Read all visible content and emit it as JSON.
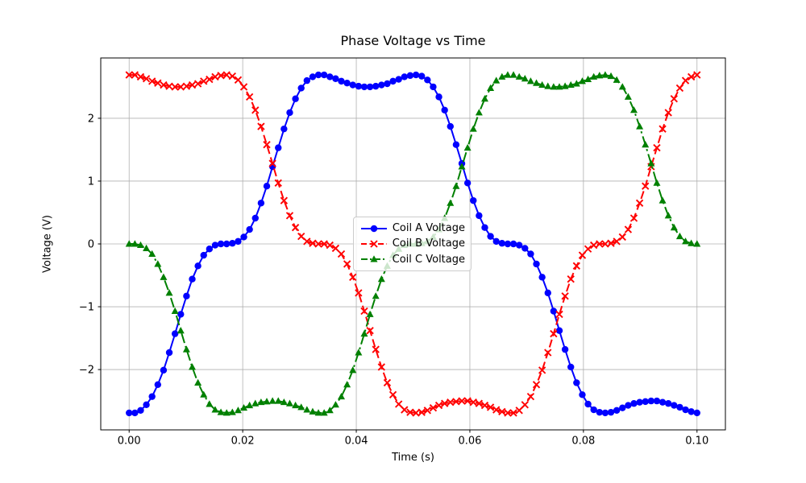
{
  "chart_data": {
    "type": "line",
    "title": "Phase Voltage vs Time",
    "xlabel": "Time (s)",
    "ylabel": "Voltage (V)",
    "xlim": [
      -0.005,
      0.105
    ],
    "ylim": [
      -2.96,
      2.96
    ],
    "x_ticks": [
      0,
      0.02,
      0.04,
      0.06,
      0.08,
      0.1
    ],
    "x_tick_labels": [
      "0.00",
      "0.02",
      "0.04",
      "0.06",
      "0.08",
      "0.10"
    ],
    "y_ticks": [
      -2,
      -1,
      0,
      1,
      2
    ],
    "y_tick_labels": [
      "−2",
      "−1",
      "0",
      "1",
      "2"
    ],
    "grid": true,
    "legend_position": "center",
    "colors": {
      "background": "#ffffff",
      "grid": "#b0b0b0",
      "axes": "#000000",
      "text": "#000000",
      "legend_border": "#cccccc"
    },
    "t": [
      0,
      0.00101,
      0.00202,
      0.00303,
      0.00404,
      0.00505,
      0.00606,
      0.00707,
      0.00808,
      0.00909,
      0.0101,
      0.01111,
      0.01212,
      0.01313,
      0.01414,
      0.01515,
      0.01616,
      0.01717,
      0.01818,
      0.01919,
      0.0202,
      0.02121,
      0.02222,
      0.02323,
      0.02424,
      0.02525,
      0.02626,
      0.02727,
      0.02828,
      0.02929,
      0.0303,
      0.03131,
      0.03232,
      0.03333,
      0.03434,
      0.03535,
      0.03636,
      0.03737,
      0.03838,
      0.03939,
      0.0404,
      0.04141,
      0.04242,
      0.04343,
      0.04444,
      0.04545,
      0.04646,
      0.04747,
      0.04848,
      0.04949,
      0.05051,
      0.05152,
      0.05253,
      0.05354,
      0.05455,
      0.05556,
      0.05657,
      0.05758,
      0.05859,
      0.0596,
      0.06061,
      0.06162,
      0.06263,
      0.06364,
      0.06465,
      0.06566,
      0.06667,
      0.06768,
      0.06869,
      0.0697,
      0.07071,
      0.07172,
      0.07273,
      0.07374,
      0.07475,
      0.07576,
      0.07677,
      0.07778,
      0.07879,
      0.0798,
      0.08081,
      0.08182,
      0.08283,
      0.08384,
      0.08485,
      0.08586,
      0.08687,
      0.08788,
      0.08889,
      0.0899,
      0.09091,
      0.09192,
      0.09293,
      0.09394,
      0.09495,
      0.09596,
      0.09697,
      0.09798,
      0.09899,
      0.1
    ],
    "series": [
      {
        "id": "coil-a",
        "name": "Coil A Voltage",
        "color": "#0000ff",
        "line_style": "solid",
        "marker": "circle",
        "values": [
          -2.69,
          -2.69,
          -2.65,
          -2.56,
          -2.43,
          -2.24,
          -2.01,
          -1.73,
          -1.43,
          -1.12,
          -0.83,
          -0.56,
          -0.35,
          -0.18,
          -0.08,
          -0.02,
          0,
          0,
          0.01,
          0.04,
          0.11,
          0.23,
          0.41,
          0.65,
          0.92,
          1.23,
          1.53,
          1.83,
          2.09,
          2.31,
          2.48,
          2.6,
          2.66,
          2.69,
          2.69,
          2.66,
          2.63,
          2.59,
          2.56,
          2.53,
          2.51,
          2.5,
          2.5,
          2.51,
          2.53,
          2.55,
          2.59,
          2.62,
          2.66,
          2.68,
          2.69,
          2.67,
          2.61,
          2.5,
          2.34,
          2.13,
          1.87,
          1.58,
          1.28,
          0.97,
          0.69,
          0.45,
          0.26,
          0.12,
          0.04,
          0.01,
          0,
          0,
          -0.02,
          -0.07,
          -0.16,
          -0.32,
          -0.53,
          -0.78,
          -1.07,
          -1.38,
          -1.68,
          -1.96,
          -2.21,
          -2.4,
          -2.55,
          -2.64,
          -2.68,
          -2.69,
          -2.68,
          -2.65,
          -2.61,
          -2.57,
          -2.54,
          -2.52,
          -2.51,
          -2.5,
          -2.5,
          -2.52,
          -2.54,
          -2.57,
          -2.6,
          -2.64,
          -2.67,
          -2.69
        ]
      },
      {
        "id": "coil-b",
        "name": "Coil B Voltage",
        "color": "#ff0000",
        "line_style": "dashed",
        "marker": "x",
        "values": [
          2.69,
          2.69,
          2.66,
          2.63,
          2.59,
          2.56,
          2.53,
          2.51,
          2.5,
          2.5,
          2.51,
          2.53,
          2.55,
          2.59,
          2.62,
          2.66,
          2.68,
          2.69,
          2.67,
          2.61,
          2.5,
          2.34,
          2.13,
          1.87,
          1.58,
          1.28,
          0.97,
          0.69,
          0.45,
          0.26,
          0.12,
          0.04,
          0.01,
          0,
          0,
          -0.02,
          -0.07,
          -0.16,
          -0.32,
          -0.53,
          -0.78,
          -1.07,
          -1.38,
          -1.68,
          -1.96,
          -2.21,
          -2.4,
          -2.55,
          -2.64,
          -2.68,
          -2.69,
          -2.68,
          -2.65,
          -2.61,
          -2.57,
          -2.54,
          -2.52,
          -2.51,
          -2.5,
          -2.5,
          -2.52,
          -2.54,
          -2.57,
          -2.6,
          -2.64,
          -2.67,
          -2.69,
          -2.69,
          -2.65,
          -2.56,
          -2.43,
          -2.24,
          -2.01,
          -1.73,
          -1.43,
          -1.12,
          -0.83,
          -0.56,
          -0.35,
          -0.18,
          -0.08,
          -0.02,
          0,
          0,
          0.01,
          0.04,
          0.11,
          0.23,
          0.41,
          0.65,
          0.92,
          1.23,
          1.53,
          1.83,
          2.09,
          2.31,
          2.48,
          2.6,
          2.66,
          2.69
        ]
      },
      {
        "id": "coil-c",
        "name": "Coil C Voltage",
        "color": "#008000",
        "line_style": "dashdot",
        "marker": "triangle-up",
        "values": [
          0,
          0,
          -0.02,
          -0.07,
          -0.16,
          -0.32,
          -0.53,
          -0.78,
          -1.07,
          -1.38,
          -1.68,
          -1.96,
          -2.21,
          -2.4,
          -2.55,
          -2.64,
          -2.68,
          -2.69,
          -2.68,
          -2.65,
          -2.61,
          -2.57,
          -2.54,
          -2.52,
          -2.51,
          -2.5,
          -2.5,
          -2.52,
          -2.54,
          -2.57,
          -2.6,
          -2.64,
          -2.67,
          -2.69,
          -2.69,
          -2.65,
          -2.56,
          -2.43,
          -2.24,
          -2.01,
          -1.73,
          -1.43,
          -1.12,
          -0.83,
          -0.56,
          -0.35,
          -0.18,
          -0.08,
          -0.02,
          0,
          0,
          0.01,
          0.04,
          0.11,
          0.23,
          0.41,
          0.65,
          0.92,
          1.23,
          1.53,
          1.83,
          2.09,
          2.31,
          2.48,
          2.6,
          2.66,
          2.69,
          2.69,
          2.66,
          2.63,
          2.59,
          2.56,
          2.53,
          2.51,
          2.5,
          2.5,
          2.51,
          2.53,
          2.55,
          2.59,
          2.62,
          2.66,
          2.68,
          2.69,
          2.67,
          2.61,
          2.5,
          2.34,
          2.13,
          1.87,
          1.58,
          1.28,
          0.97,
          0.69,
          0.45,
          0.26,
          0.12,
          0.04,
          0.01,
          0
        ]
      }
    ]
  }
}
